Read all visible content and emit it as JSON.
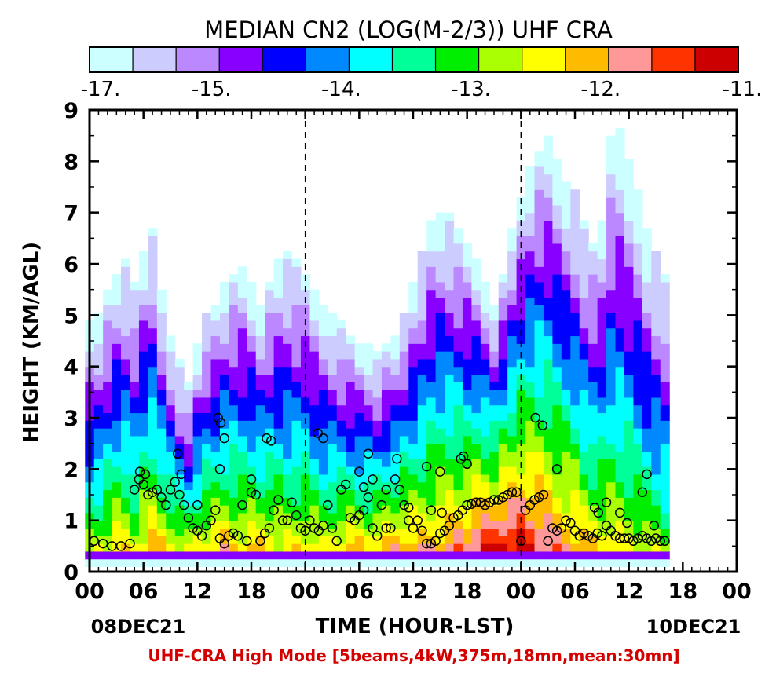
{
  "chart_data": {
    "type": "heatmap",
    "title": "MEDIAN CN2 (LOG(M-2/3)) UHF CRA",
    "xlabel": "TIME (HOUR-LST)",
    "ylabel": "HEIGHT (KM/AGL)",
    "footer": "UHF-CRA High Mode [5beams,4kW,375m,18mn,mean:30mn]",
    "date_left": "08DEC21",
    "date_right": "10DEC21",
    "x_unit": "hours since 08DEC21 00 LST",
    "xlim": [
      0,
      72
    ],
    "ylim": [
      0,
      9
    ],
    "x_ticks": [
      0,
      6,
      12,
      18,
      24,
      30,
      36,
      42,
      48,
      54,
      60,
      66,
      72
    ],
    "x_tick_labels": [
      "00",
      "06",
      "12",
      "18",
      "00",
      "06",
      "12",
      "18",
      "00",
      "06",
      "12",
      "18",
      "00"
    ],
    "y_ticks": [
      0,
      1,
      2,
      3,
      4,
      5,
      6,
      7,
      8,
      9
    ],
    "y_tick_labels": [
      "0",
      "1",
      "2",
      "3",
      "4",
      "5",
      "6",
      "7",
      "8",
      "9"
    ],
    "day_boundaries": [
      24,
      48
    ],
    "colorbar": {
      "colors": [
        "#ccffff",
        "#ccccff",
        "#bb88ff",
        "#8800ff",
        "#0000ff",
        "#0088ff",
        "#00ffff",
        "#00ff99",
        "#00ee00",
        "#aaff00",
        "#ffff00",
        "#ffbb00",
        "#ff9999",
        "#ff3300",
        "#cc0000"
      ],
      "tick_values": [
        -17,
        -15,
        -14,
        -13,
        -12,
        -11
      ],
      "tick_labels": [
        "-17.",
        "-15.",
        "-14.",
        "-13.",
        "-12.",
        "-11."
      ],
      "range": [
        -17,
        -11
      ]
    },
    "cn2_profiles": {
      "description_values": "per time column: top height of the echo (km) and peak log10 Cn2 near the surface",
      "time_start": 0,
      "time_end": 64,
      "top_km": [
        4.8,
        5.0,
        5.4,
        5.8,
        6.0,
        5.6,
        6.2,
        6.6,
        5.4,
        4.6,
        4.0,
        3.6,
        4.4,
        5.0,
        5.2,
        5.6,
        5.8,
        5.9,
        5.6,
        5.2,
        5.6,
        6.0,
        6.2,
        6.0,
        5.8,
        5.4,
        5.2,
        5.0,
        4.8,
        4.6,
        4.4,
        4.4,
        4.2,
        4.4,
        4.6,
        5.0,
        5.6,
        6.2,
        6.8,
        7.0,
        6.9,
        6.6,
        6.4,
        6.0,
        5.6,
        5.2,
        5.8,
        6.6,
        7.2,
        7.8,
        8.2,
        8.4,
        8.0,
        7.6,
        7.4,
        6.8,
        6.4,
        6.8,
        8.4,
        8.6,
        8.0,
        7.4,
        6.6,
        6.2,
        5.8
      ],
      "peak_log_cn2": [
        -13.2,
        -13.0,
        -12.8,
        -12.6,
        -12.7,
        -12.9,
        -12.6,
        -12.4,
        -12.5,
        -12.7,
        -12.9,
        -13.0,
        -12.8,
        -12.6,
        -12.5,
        -12.4,
        -12.6,
        -12.7,
        -12.6,
        -12.5,
        -12.6,
        -12.8,
        -12.9,
        -12.7,
        -12.6,
        -12.8,
        -12.9,
        -12.7,
        -12.6,
        -12.5,
        -12.5,
        -12.6,
        -12.5,
        -12.4,
        -12.3,
        -12.2,
        -12.3,
        -12.4,
        -12.3,
        -12.2,
        -12.1,
        -12.0,
        -11.9,
        -11.6,
        -11.4,
        -11.3,
        -11.2,
        -11.3,
        -11.2,
        -11.4,
        -11.6,
        -11.8,
        -12.0,
        -12.1,
        -12.2,
        -12.4,
        -12.5,
        -12.6,
        -12.7,
        -12.8,
        -12.9,
        -13.0,
        -13.1,
        -13.2,
        -13.3
      ]
    },
    "markers": {
      "name": "boundary-layer height",
      "x": [
        0.5,
        1.5,
        2.5,
        3.5,
        4.5,
        5.0,
        5.5,
        6.0,
        6.5,
        7.0,
        7.5,
        8.0,
        8.5,
        9.0,
        9.5,
        10.0,
        10.5,
        11.0,
        11.5,
        12.0,
        12.5,
        13.0,
        13.5,
        14.0,
        14.5,
        15.0,
        15.5,
        16.0,
        16.5,
        17.0,
        17.5,
        18.0,
        18.5,
        19.0,
        19.5,
        20.0,
        20.5,
        21.0,
        21.5,
        22.0,
        22.5,
        23.0,
        23.5,
        24.0,
        24.5,
        25.0,
        25.5,
        26.0,
        26.5,
        27.0,
        27.5,
        28.0,
        28.5,
        29.0,
        29.5,
        30.0,
        30.5,
        31.0,
        31.5,
        32.0,
        32.5,
        33.0,
        33.5,
        34.0,
        34.5,
        35.0,
        35.5,
        36.0,
        36.5,
        37.0,
        37.5,
        38.0,
        38.5,
        39.0,
        39.5,
        40.0,
        40.5,
        41.0,
        41.5,
        42.0,
        42.5,
        43.0,
        43.5,
        44.0,
        44.5,
        45.0,
        45.5,
        46.0,
        46.5,
        47.0,
        47.5,
        48.0,
        48.5,
        49.0,
        49.5,
        50.0,
        50.5,
        51.0,
        51.5,
        52.0,
        52.5,
        53.0,
        53.5,
        54.0,
        54.5,
        55.0,
        55.5,
        56.0,
        56.5,
        57.0,
        57.5,
        58.0,
        58.5,
        59.0,
        59.5,
        60.0,
        60.5,
        61.0,
        61.5,
        62.0,
        62.5,
        63.0,
        63.5,
        64.0,
        5.6,
        6.2,
        9.8,
        10.2,
        14.3,
        14.6,
        18.0,
        19.7,
        20.2,
        25.4,
        26.0,
        30.0,
        31.0,
        33.0,
        34.2,
        37.5,
        39.0,
        41.3,
        41.6,
        42.0,
        49.6,
        50.4,
        52.0,
        56.2,
        56.6,
        57.5,
        59.0,
        59.8,
        61.5,
        62.0,
        62.8,
        12.0,
        14.5,
        15.0,
        30.5,
        31.5,
        35.5,
        38.0,
        39.2
      ],
      "y": [
        0.6,
        0.55,
        0.5,
        0.5,
        0.55,
        1.6,
        1.8,
        1.7,
        1.5,
        1.55,
        1.6,
        1.45,
        1.3,
        1.6,
        1.75,
        1.5,
        1.3,
        1.05,
        0.85,
        0.8,
        0.7,
        0.9,
        1.0,
        1.2,
        0.65,
        0.55,
        0.7,
        0.75,
        0.7,
        1.3,
        0.6,
        1.55,
        1.5,
        0.6,
        0.75,
        0.85,
        1.2,
        1.4,
        1.0,
        1.0,
        1.35,
        1.1,
        0.85,
        0.8,
        1.0,
        0.85,
        0.8,
        0.9,
        1.3,
        0.85,
        0.6,
        1.6,
        1.7,
        1.05,
        1.0,
        1.1,
        1.2,
        1.45,
        0.85,
        0.7,
        1.3,
        0.85,
        0.85,
        1.8,
        1.6,
        1.3,
        1.0,
        0.85,
        1.0,
        0.8,
        0.55,
        0.55,
        0.6,
        0.75,
        0.8,
        0.9,
        1.05,
        1.1,
        1.2,
        1.3,
        1.32,
        1.35,
        1.35,
        1.3,
        1.35,
        1.4,
        1.4,
        1.45,
        1.5,
        1.55,
        1.55,
        0.6,
        1.2,
        1.3,
        1.4,
        1.45,
        1.5,
        0.6,
        0.85,
        0.8,
        0.85,
        1.0,
        0.95,
        0.8,
        0.7,
        0.75,
        0.7,
        0.65,
        0.75,
        0.7,
        0.9,
        0.8,
        0.7,
        0.65,
        0.65,
        0.65,
        0.6,
        0.65,
        0.7,
        0.65,
        0.6,
        0.65,
        0.6,
        0.6,
        1.95,
        1.9,
        2.3,
        1.9,
        3.0,
        2.9,
        1.8,
        2.6,
        2.55,
        2.7,
        2.6,
        1.95,
        2.3,
        1.6,
        2.2,
        2.05,
        1.95,
        2.2,
        2.25,
        2.1,
        3.0,
        2.85,
        2.0,
        1.25,
        1.15,
        1.35,
        1.15,
        0.95,
        1.55,
        1.9,
        0.9,
        1.3,
        2.0,
        2.6,
        1.65,
        1.8,
        1.25,
        1.2,
        1.15
      ]
    }
  }
}
